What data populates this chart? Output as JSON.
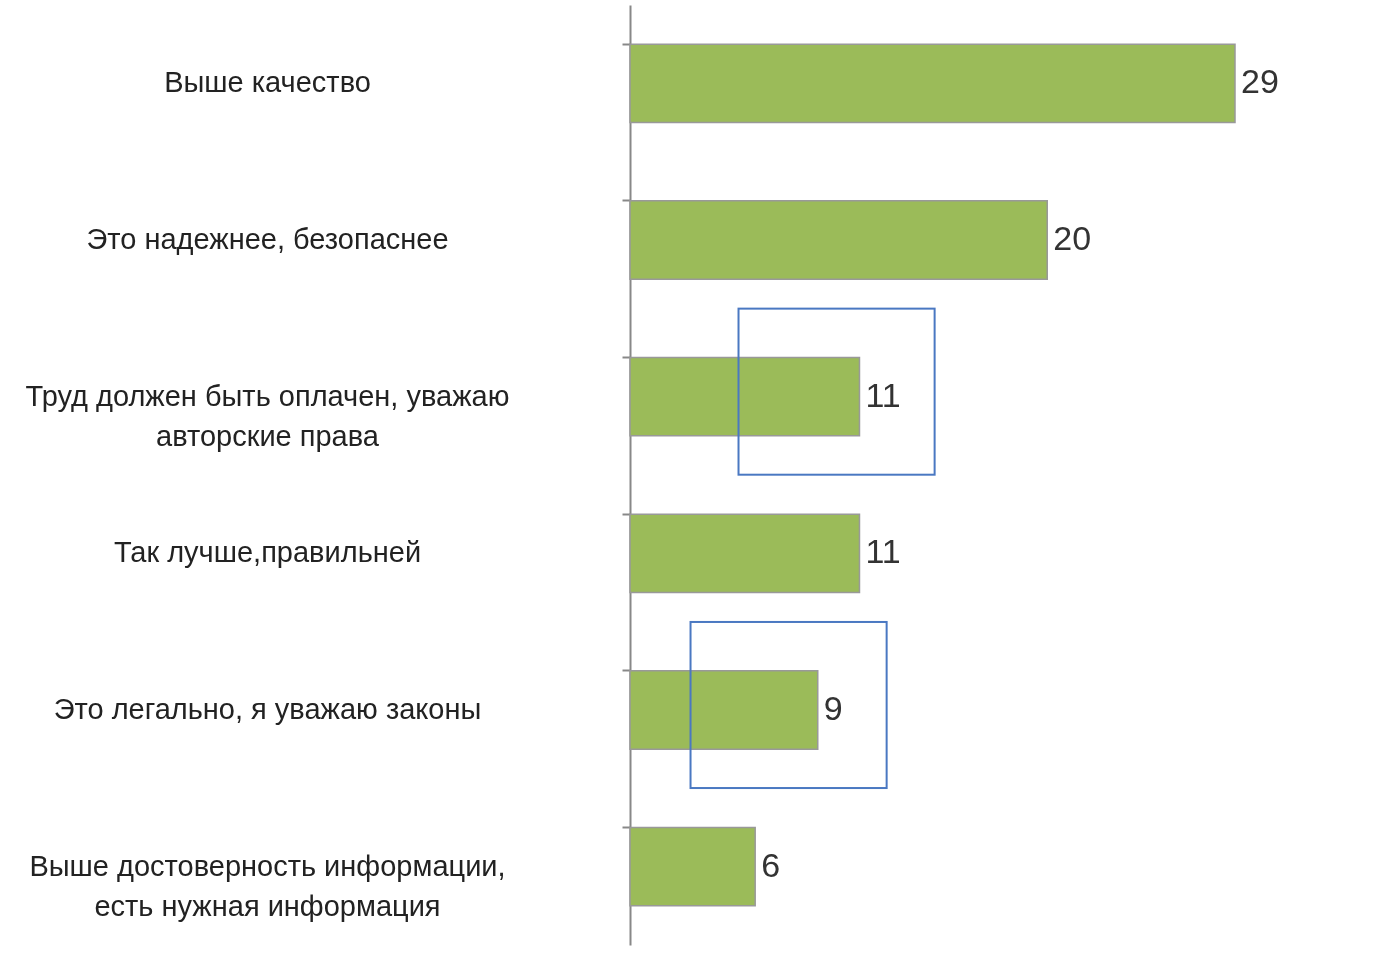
{
  "chart_data": {
    "type": "bar",
    "orientation": "horizontal",
    "data_labels": true,
    "color": "#9bbb59",
    "categories": [
      "Выше качество",
      "Это надежнее, безопаснее",
      "Труд должен быть оплачен, уважаю авторские права",
      "Так лучше,правильней",
      "Это легально, я уважаю законы",
      "Выше достоверность информации, есть нужная информация"
    ],
    "values": [
      29,
      20,
      11,
      11,
      9,
      6
    ]
  }
}
